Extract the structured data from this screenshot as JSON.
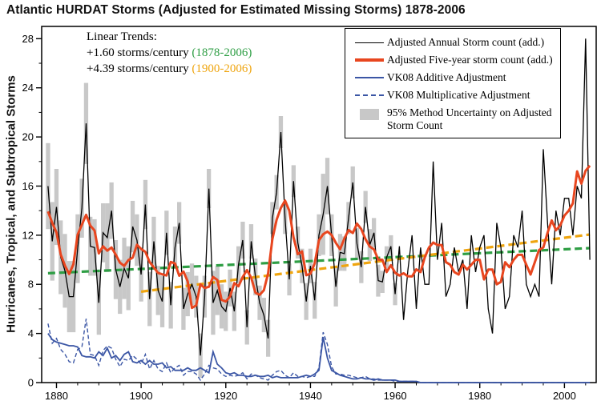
{
  "chart": {
    "title": "Atlantic HURDAT Storms (Adjusted for Estimated Missing Storms) 1878-2006",
    "ylabel": "Hurricanes, Tropical, and Subtropical Storms"
  },
  "annotation": {
    "header": "Linear Trends:",
    "trend1_text": "+1.60 storms/century",
    "trend1_period": "(1878-2006)",
    "trend2_text": "+4.39 storms/century",
    "trend2_period": "(1900-2006)"
  },
  "legend": {
    "items": [
      {
        "key": "annual",
        "label": "Adjusted Annual Storm count (add.)"
      },
      {
        "key": "five_year",
        "label": "Adjusted Five-year storm count (add.)"
      },
      {
        "key": "vk08_additive",
        "label": "VK08 Additive Adjustment"
      },
      {
        "key": "vk08_multiplicative",
        "label": "VK08 Multiplicative Adjustment"
      },
      {
        "key": "uncertainty",
        "label": "95% Method Uncertainty on Adjusted Storm Count"
      }
    ]
  },
  "chart_data": {
    "type": "line",
    "title": "Atlantic HURDAT Storms (Adjusted for Estimated Missing Storms) 1878-2006",
    "xlabel": "",
    "ylabel": "Hurricanes, Tropical, and Subtropical Storms",
    "x_range": [
      1878,
      2006
    ],
    "ylim": [
      0,
      28
    ],
    "x_ticks": [
      1880,
      1900,
      1920,
      1940,
      1960,
      1980,
      2000
    ],
    "y_ticks": [
      0,
      4,
      8,
      12,
      16,
      20,
      24,
      28
    ],
    "start_year": 1878,
    "end_year": 2006,
    "band_color": "#c8c8c8",
    "five_year": {
      "name": "Adjusted Five-year storm count (add.)",
      "color": "#e8461f",
      "window": 5
    },
    "trends": [
      {
        "name": "linear trend 1878-2006",
        "slope_per_century": 1.6,
        "start_year": 1878,
        "end_year": 2006,
        "start_value": 8.9,
        "color": "#2e9e44"
      },
      {
        "name": "linear trend 1900-2006",
        "slope_per_century": 4.39,
        "start_year": 1900,
        "end_year": 2006,
        "start_value": 7.4,
        "color": "#efa50f"
      }
    ],
    "series": [
      {
        "name": "Adjusted Annual Storm count (add.)",
        "color": "#000000",
        "values": [
          16,
          11.5,
          14.3,
          10.2,
          9.1,
          7,
          7,
          10.9,
          14.2,
          21.1,
          11.1,
          11,
          6.5,
          12.2,
          11.8,
          14,
          9.2,
          7.8,
          9.3,
          8.5,
          12.7,
          11.6,
          8.8,
          14.5,
          6.8,
          11.5,
          7.5,
          6.6,
          12.2,
          6.3,
          11,
          13,
          6,
          7.2,
          8,
          7,
          2.2,
          7,
          15.8,
          6.5,
          7.5,
          6.2,
          5.8,
          7.7,
          5.8,
          9.6,
          11.6,
          4.5,
          11.5,
          8.6,
          6.5,
          5.5,
          3.6,
          13.4,
          15.5,
          20.4,
          13.4,
          8.4,
          16.4,
          11.4,
          9.5,
          6.6,
          9.5,
          6.7,
          12,
          13.7,
          16,
          12,
          7.8,
          10.6,
          10.5,
          13.4,
          16.3,
          11.3,
          9.4,
          14.3,
          11.2,
          12.2,
          8.3,
          8.2,
          10.2,
          11.1,
          7.2,
          11.1,
          5.1,
          9.1,
          12,
          6,
          11,
          8,
          8,
          18,
          10,
          13,
          7,
          8,
          11,
          9,
          10,
          6,
          12,
          9,
          11,
          12,
          6,
          4,
          13,
          11,
          6,
          7,
          12,
          11,
          14,
          8,
          7,
          8,
          7,
          19,
          13,
          8,
          14,
          12,
          15,
          15,
          12,
          16,
          15,
          28,
          10
        ]
      },
      {
        "name": "VK08 Additive Adjustment",
        "color": "#3b56a5",
        "values": [
          4,
          3.5,
          3.3,
          3.2,
          3.1,
          3,
          3,
          2.9,
          2.2,
          2.1,
          2.1,
          2,
          2.5,
          2.2,
          2.8,
          2,
          2.2,
          1.8,
          2.3,
          2.5,
          1.7,
          1.6,
          1.8,
          1.5,
          1.8,
          1.5,
          1.5,
          1.6,
          1.2,
          1.3,
          1,
          1,
          1,
          1.2,
          1,
          1,
          1.2,
          1,
          0.8,
          2.5,
          1.5,
          1.2,
          0.8,
          0.7,
          0.8,
          0.6,
          0.6,
          0.5,
          0.5,
          0.6,
          0.5,
          0.5,
          0.6,
          0.4,
          0.5,
          0.4,
          0.4,
          0.4,
          0.4,
          0.4,
          0.5,
          0.6,
          0.5,
          0.7,
          1,
          3.7,
          2,
          1,
          0.8,
          0.6,
          0.5,
          0.4,
          0.3,
          0.3,
          0.4,
          0.3,
          0.3,
          0.2,
          0.3,
          0.2,
          0.2,
          0.2,
          0.2,
          0.1,
          0.1,
          0.1,
          0.1,
          0.1,
          0,
          0,
          0,
          0,
          0,
          0,
          0,
          0,
          0,
          0,
          0,
          0,
          0,
          0,
          0,
          0,
          0,
          0,
          0,
          0,
          0,
          0,
          0,
          0,
          0,
          0,
          0,
          0,
          0,
          0,
          0,
          0,
          0,
          0,
          0,
          0,
          0,
          0,
          0,
          0,
          0
        ]
      },
      {
        "name": "VK08 Multiplicative Adjustment",
        "color": "#3b56a5",
        "style": "dashed",
        "values": [
          4.8,
          3.2,
          3.6,
          2.7,
          2.3,
          1.7,
          1.6,
          2.7,
          2.9,
          5.2,
          2.3,
          2.2,
          1.4,
          2.6,
          3,
          2.8,
          1.9,
          1.3,
          1.9,
          1.8,
          2.2,
          1.9,
          1.5,
          2.3,
          1.1,
          1.8,
          1.1,
          0.9,
          1.6,
          0.8,
          1.2,
          1.4,
          0.6,
          0.9,
          0.9,
          0.7,
          0.2,
          0.7,
          1.4,
          1.2,
          1.1,
          0.7,
          0.5,
          0.6,
          0.5,
          0.6,
          0.8,
          0.3,
          0.7,
          0.6,
          0.4,
          0.3,
          0.2,
          0.6,
          0.9,
          1,
          0.6,
          0.4,
          0.8,
          0.5,
          0.5,
          0.4,
          0.5,
          0.5,
          1.2,
          4.1,
          3.1,
          1.3,
          0.7,
          0.7,
          0.6,
          0.6,
          0.5,
          0.4,
          0.4,
          0.5,
          0.3,
          0.3,
          0.2,
          0.2,
          0.2,
          0.2,
          0.1,
          0.1,
          0.1,
          0.1,
          0.1,
          0.1,
          0,
          0,
          0,
          0,
          0,
          0,
          0,
          0,
          0,
          0,
          0,
          0,
          0,
          0,
          0,
          0,
          0,
          0,
          0,
          0,
          0,
          0,
          0,
          0,
          0,
          0,
          0,
          0,
          0,
          0,
          0,
          0,
          0,
          0,
          0,
          0,
          0,
          0,
          0,
          0,
          0
        ]
      },
      {
        "name": "95% Method Uncertainty half-width",
        "color": "#c8c8c8",
        "values": [
          3.5,
          3.2,
          3.1,
          3,
          3,
          2.9,
          2.9,
          2.8,
          2.4,
          3.3,
          2.4,
          2.3,
          2.6,
          2.4,
          2.8,
          2.3,
          2.4,
          2.2,
          2.5,
          2.6,
          2.1,
          2.1,
          2.2,
          2,
          2.2,
          2,
          2,
          2.1,
          1.8,
          1.9,
          1.7,
          1.7,
          1.7,
          1.8,
          1.7,
          1.7,
          1.8,
          1.7,
          1.6,
          2.6,
          2,
          1.8,
          1.6,
          1.5,
          1.6,
          1.5,
          1.5,
          1.4,
          1.4,
          1.5,
          1.4,
          1.4,
          1.5,
          1.3,
          1.4,
          1.3,
          1.3,
          1.3,
          1.3,
          1.3,
          1.4,
          1.5,
          1.4,
          1.5,
          1.7,
          3.3,
          2.3,
          1.7,
          1.6,
          1.5,
          1.4,
          1.3,
          1.3,
          1.3,
          1.3,
          1.3,
          1.3,
          1.2,
          1.3,
          0.9,
          0.9,
          0.9,
          0.9,
          0,
          0,
          0,
          0,
          0,
          0,
          0,
          0,
          0,
          0,
          0,
          0,
          0,
          0,
          0,
          0,
          0,
          0,
          0,
          0,
          0,
          0,
          0,
          0,
          0,
          0,
          0,
          0,
          0,
          0,
          0,
          0,
          0,
          0,
          0,
          0,
          0,
          0,
          0,
          0,
          0,
          0,
          0,
          0,
          0,
          0
        ]
      }
    ]
  }
}
